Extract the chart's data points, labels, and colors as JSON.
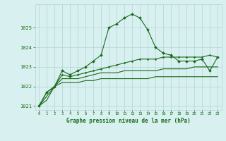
{
  "x": [
    0,
    1,
    2,
    3,
    4,
    5,
    6,
    7,
    8,
    9,
    10,
    11,
    12,
    13,
    14,
    15,
    16,
    17,
    18,
    19,
    20,
    21,
    22,
    23
  ],
  "line1": [
    1021.0,
    1021.7,
    1022.0,
    1022.8,
    1022.6,
    1022.8,
    1023.0,
    1023.3,
    1023.6,
    1025.0,
    1025.2,
    1025.5,
    1025.7,
    1025.5,
    1024.9,
    1024.0,
    1023.7,
    1023.6,
    1023.3,
    1023.3,
    1023.3,
    1023.4,
    1022.8,
    1023.5
  ],
  "line2": [
    1021.0,
    1021.7,
    1022.0,
    1022.6,
    1022.5,
    1022.6,
    1022.7,
    1022.8,
    1022.9,
    1023.0,
    1023.1,
    1023.2,
    1023.3,
    1023.4,
    1023.4,
    1023.4,
    1023.5,
    1023.5,
    1023.5,
    1023.5,
    1023.5,
    1023.5,
    1023.6,
    1023.5
  ],
  "line3": [
    1021.0,
    1021.5,
    1022.0,
    1022.4,
    1022.4,
    1022.4,
    1022.5,
    1022.6,
    1022.7,
    1022.7,
    1022.7,
    1022.8,
    1022.8,
    1022.8,
    1022.8,
    1022.8,
    1022.9,
    1022.9,
    1022.9,
    1022.9,
    1023.0,
    1023.0,
    1023.0,
    1023.0
  ],
  "line4": [
    1021.0,
    1021.3,
    1022.0,
    1022.2,
    1022.2,
    1022.2,
    1022.3,
    1022.3,
    1022.4,
    1022.4,
    1022.4,
    1022.4,
    1022.4,
    1022.4,
    1022.4,
    1022.5,
    1022.5,
    1022.5,
    1022.5,
    1022.5,
    1022.5,
    1022.5,
    1022.5,
    1022.5
  ],
  "ylim": [
    1020.8,
    1026.2
  ],
  "yticks": [
    1021,
    1022,
    1023,
    1024,
    1025
  ],
  "xlabel": "Graphe pression niveau de la mer (hPa)",
  "bg_color": "#d8f0f0",
  "grid_color": "#b0d4d4",
  "line_color": "#1a6b1a",
  "marker": "D",
  "markersize": 2.0
}
